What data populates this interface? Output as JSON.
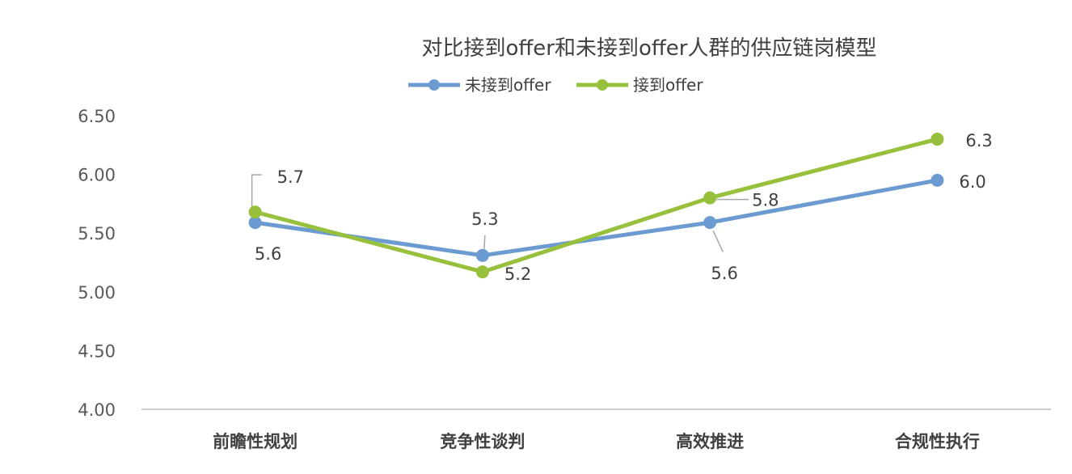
{
  "chart_data": {
    "type": "line",
    "title": "对比接到offer和未接到offer人群的供应链岗模型",
    "categories": [
      "前瞻性规划",
      "竞争性谈判",
      "高效推进",
      "合规性执行"
    ],
    "ylim": [
      4.0,
      6.5
    ],
    "yticks": [
      "4.00",
      "4.50",
      "5.00",
      "5.50",
      "6.00",
      "6.50"
    ],
    "grid": false,
    "legend_position": "top",
    "series": [
      {
        "name": "未接到offer",
        "color": "#6C9BD2",
        "values": [
          5.59,
          5.31,
          5.59,
          5.95
        ],
        "labels": [
          "5.6",
          "5.3",
          "5.6",
          "6.0"
        ]
      },
      {
        "name": "接到offer",
        "color": "#97C03D",
        "values": [
          5.68,
          5.17,
          5.8,
          6.3
        ],
        "labels": [
          "5.7",
          "5.2",
          "5.8",
          "6.3"
        ]
      }
    ]
  }
}
